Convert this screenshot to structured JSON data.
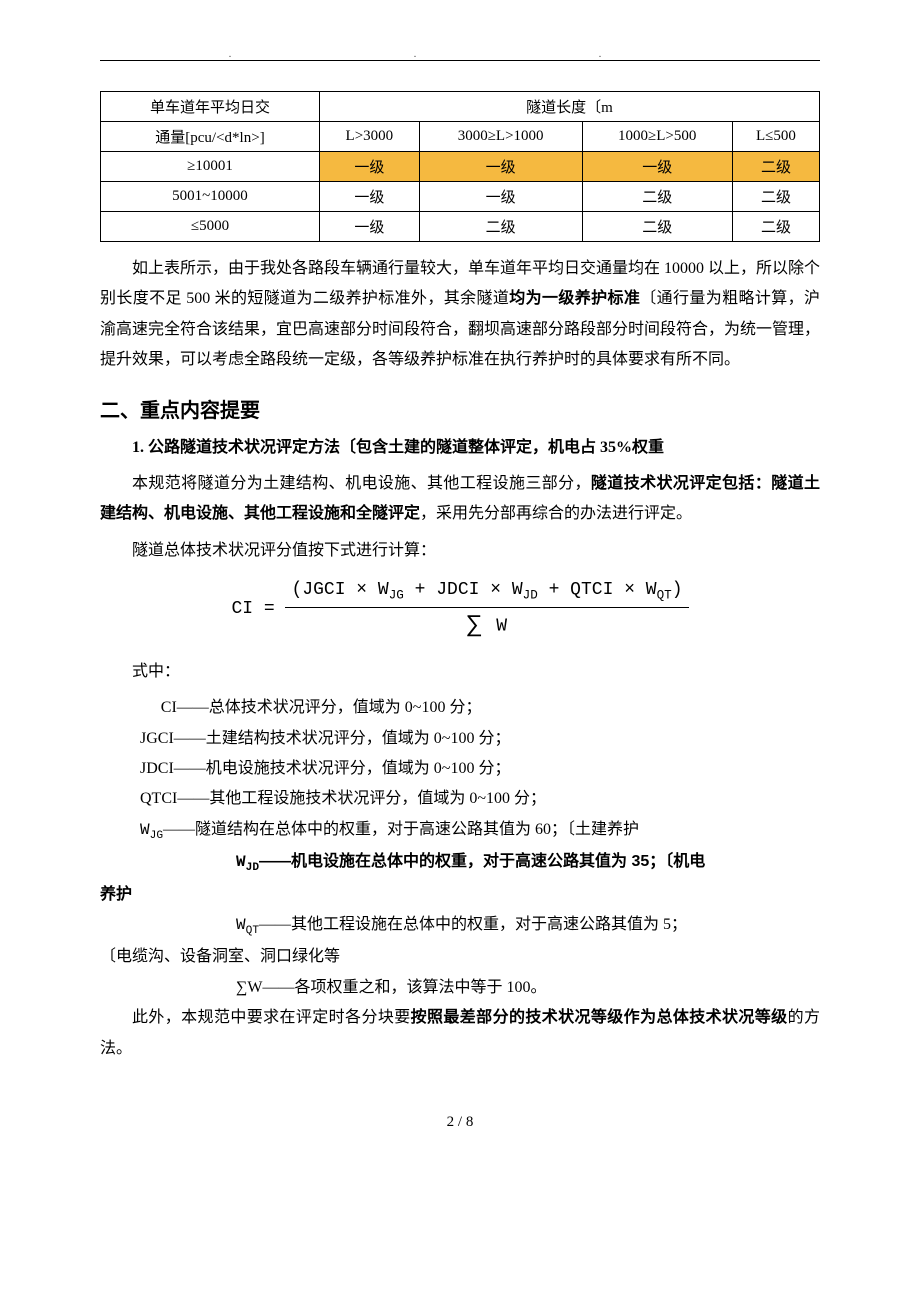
{
  "table": {
    "header": {
      "left_top": "单车道年平均日交",
      "left_bottom": "通量[pcu/<d*ln>]",
      "right_merged": "隧道长度〔m",
      "cols": [
        "L>3000",
        "3000≥L>1000",
        "1000≥L>500",
        "L≤500"
      ]
    },
    "rows": [
      {
        "label": "≥10001",
        "cells": [
          "一级",
          "一级",
          "一级",
          "二级"
        ],
        "highlight": true
      },
      {
        "label": "5001~10000",
        "cells": [
          "一级",
          "一级",
          "二级",
          "二级"
        ],
        "highlight": false
      },
      {
        "label": "≤5000",
        "cells": [
          "一级",
          "二级",
          "二级",
          "二级"
        ],
        "highlight": false
      }
    ],
    "highlight_color": "#f5b940",
    "border_color": "#000000",
    "fontsize": 15
  },
  "para1": {
    "pre": "如上表所示，由于我处各路段车辆通行量较大，单车道年平均日交通量均在 10000 以上，所以除个别长度不足 500 米的短隧道为二级养护标准外，其余隧道",
    "bold": "均为一级养护标准",
    "post": "〔通行量为粗略计算，沪渝高速完全符合该结果，宜巴高速部分时间段符合，翻坝高速部分路段部分时间段符合，为统一管理，提升效果，可以考虑全路段统一定级，各等级养护标准在执行养护时的具体要求有所不同。"
  },
  "section_title": "二、重点内容提要",
  "item1_title": "1. 公路隧道技术状况评定方法〔包含土建的隧道整体评定，机电占 35%权重",
  "para2": {
    "pre": "本规范将隧道分为土建结构、机电设施、其他工程设施三部分，",
    "bold": "隧道技术状况评定包括：隧道土建结构、机电设施、其他工程设施和全隧评定",
    "post": "，采用先分部再综合的办法进行评定。"
  },
  "para3": "隧道总体技术状况评分值按下式进行计算：",
  "formula": {
    "lhs": "CI = ",
    "numerator": "(JGCI × W",
    "num_sub1": "JG",
    "num_mid1": " + JDCI × W",
    "num_sub2": "JD",
    "num_mid2": " + QTCI × W",
    "num_sub3": "QT",
    "num_end": ")",
    "denominator_sigma": "∑",
    "denominator_w": " W"
  },
  "defs_header": "式中：",
  "defs": {
    "ci": "CI——总体技术状况评分，值域为 0~100 分；",
    "jgci": "JGCI——土建结构技术状况评分，值域为 0~100 分；",
    "jdci": "JDCI——机电设施技术状况评分，值域为 0~100 分；",
    "qtci": "QTCI——其他工程设施技术状况评分，值域为 0~100 分；",
    "wjg_sym": "W",
    "wjg_sub": "JG",
    "wjg_txt": "——隧道结构在总体中的权重，对于高速公路其值为 60；〔土建养护",
    "wjd_sym": "W",
    "wjd_sub": "JD",
    "wjd_txt": "——机电设施在总体中的权重，对于高速公路其值为 35；〔机电",
    "wjd_tail": "养护",
    "wqt_sym": "W",
    "wqt_sub": "QT",
    "wqt_txt": "——其他工程设施在总体中的权重，对于高速公路其值为 5；",
    "wqt_tail": "〔电缆沟、设备洞室、洞口绿化等",
    "sumw": "∑W——各项权重之和，该算法中等于 100。"
  },
  "para4": {
    "pre": "此外，本规范中要求在评定时各分块要",
    "bold": "按照最差部分的技术状况等级作为总体技术状况等级",
    "post": "的方法。"
  },
  "footer": "2  /  8",
  "colors": {
    "text": "#000000",
    "background": "#ffffff"
  }
}
